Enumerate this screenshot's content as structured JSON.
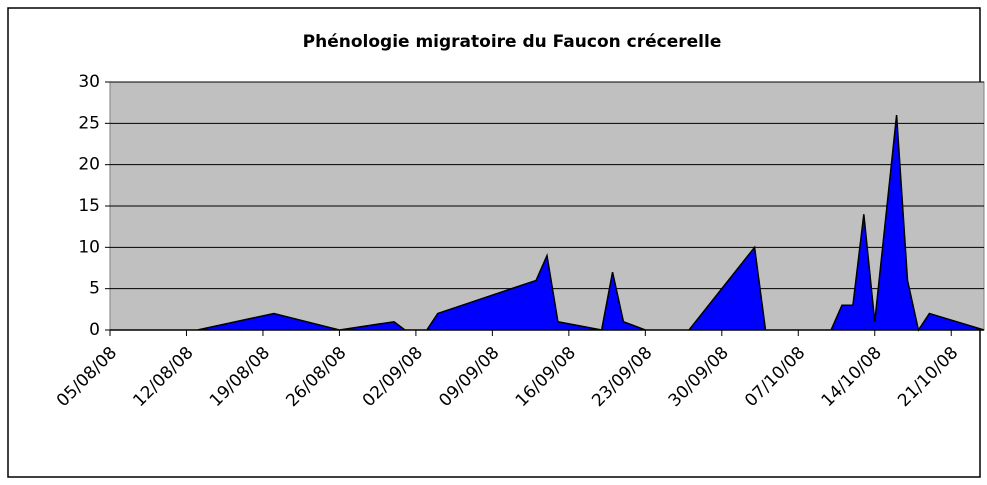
{
  "chart_data": {
    "type": "area",
    "title": "Phénologie migratoire du Faucon crécerelle",
    "x": [
      "05/08/08",
      "13/08/08",
      "20/08/08",
      "26/08/08",
      "31/08/08",
      "01/09/08",
      "03/09/08",
      "04/09/08",
      "13/09/08",
      "14/09/08",
      "15/09/08",
      "19/09/08",
      "20/09/08",
      "21/09/08",
      "23/09/08",
      "27/09/08",
      "03/10/08",
      "04/10/08",
      "10/10/08",
      "11/10/08",
      "12/10/08",
      "13/10/08",
      "14/10/08",
      "16/10/08",
      "17/10/08",
      "18/10/08",
      "19/10/08",
      "24/10/08"
    ],
    "values": [
      0,
      0,
      2,
      0,
      1,
      0,
      0,
      2,
      6,
      9,
      1,
      0,
      7,
      1,
      0,
      0,
      10,
      0,
      0,
      3,
      3,
      14,
      1,
      26,
      6,
      0,
      2,
      0
    ],
    "color": "#0000ff",
    "xlim": [
      "05/08/08",
      "24/10/08"
    ],
    "xticks": [
      "05/08/08",
      "12/08/08",
      "19/08/08",
      "26/08/08",
      "02/09/08",
      "09/09/08",
      "16/09/08",
      "23/09/08",
      "30/09/08",
      "07/10/08",
      "14/10/08",
      "21/10/08"
    ],
    "ylim": [
      0,
      30
    ],
    "yticks": [
      0,
      5,
      10,
      15,
      20,
      25,
      30
    ],
    "grid": true
  }
}
